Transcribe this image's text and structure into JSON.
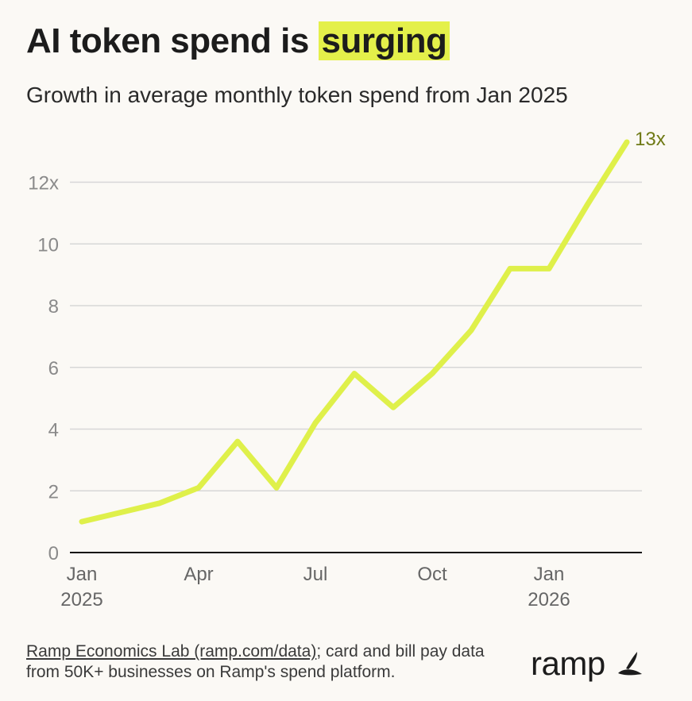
{
  "header": {
    "title_prefix": "AI token spend is ",
    "title_highlight": "surging",
    "subtitle": "Growth in average monthly token spend from Jan 2025"
  },
  "colors": {
    "line": "#dff04a",
    "highlight": "#e4f04a",
    "end_label": "#6f7a16",
    "grid": "#d7d7d7",
    "tick_text": "#8a8a8a",
    "axis": "#111111"
  },
  "chart_data": {
    "type": "line",
    "title": "",
    "xlabel": "",
    "ylabel": "",
    "x": [
      "Jan 2025",
      "Feb 2025",
      "Mar 2025",
      "Apr 2025",
      "May 2025",
      "Jun 2025",
      "Jul 2025",
      "Aug 2025",
      "Sep 2025",
      "Oct 2025",
      "Nov 2025",
      "Dec 2025",
      "Jan 2026",
      "Feb 2026",
      "Mar 2026"
    ],
    "series": [
      {
        "values": [
          1.0,
          1.3,
          1.6,
          2.1,
          3.6,
          2.1,
          4.2,
          5.8,
          4.7,
          5.8,
          7.2,
          9.2,
          9.2,
          11.3,
          13.3
        ]
      }
    ],
    "ylim": [
      0,
      13.3
    ],
    "y_ticks": [
      0,
      2,
      4,
      6,
      8,
      10,
      12
    ],
    "y_tick_labels": [
      "0",
      "2",
      "4",
      "6",
      "8",
      "10",
      "12x"
    ],
    "x_tick_labels": [
      {
        "index": 0,
        "line1": "Jan",
        "line2": "2025"
      },
      {
        "index": 3,
        "line1": "Apr",
        "line2": ""
      },
      {
        "index": 6,
        "line1": "Jul",
        "line2": ""
      },
      {
        "index": 9,
        "line1": "Oct",
        "line2": ""
      },
      {
        "index": 12,
        "line1": "Jan",
        "line2": "2026"
      }
    ],
    "end_label": "13x",
    "grid": true
  },
  "footer": {
    "source_link": "Ramp Economics Lab (ramp.com/data)",
    "source_rest": "; card and bill pay data from 50K+ businesses on Ramp's spend platform."
  },
  "brand": {
    "name": "ramp",
    "icon": "ramp-leaf-icon"
  }
}
